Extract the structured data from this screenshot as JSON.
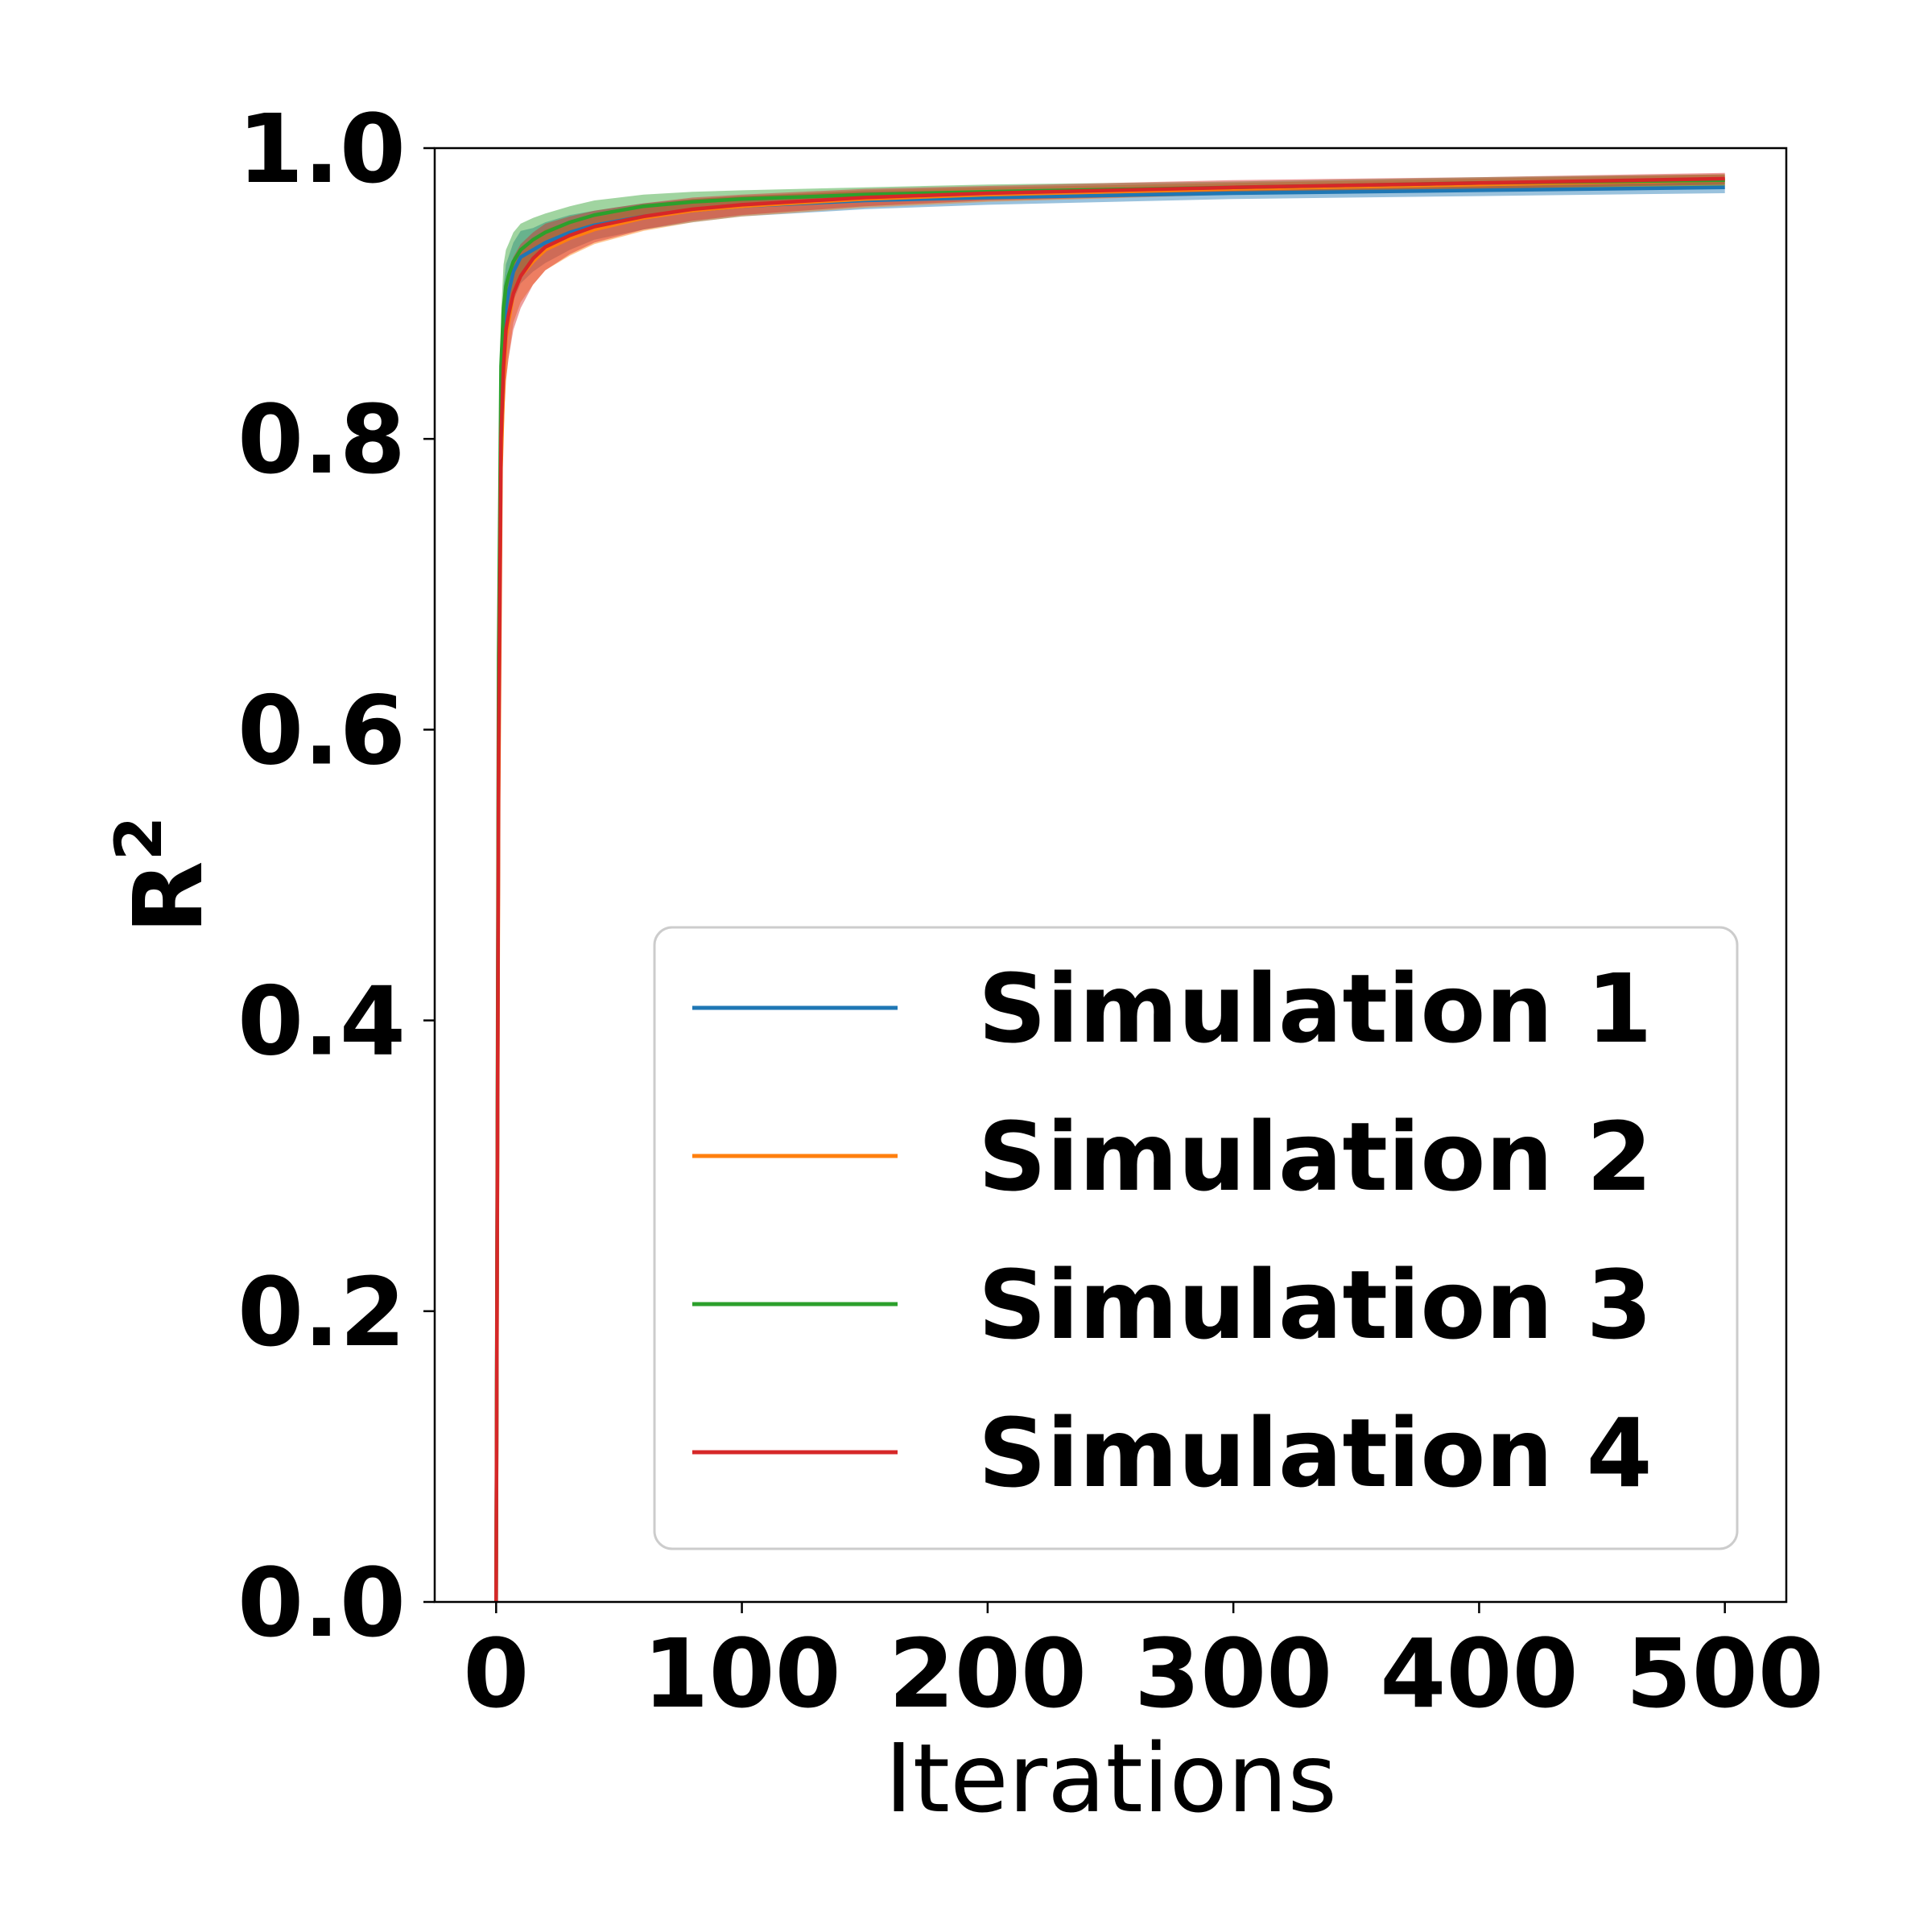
{
  "chart_data": {
    "type": "line",
    "xlabel": "Iterations",
    "ylabel": "R",
    "ylabel_superscript": "2",
    "xlim": [
      -25,
      525
    ],
    "ylim": [
      0,
      1.0
    ],
    "xticks": [
      0,
      100,
      200,
      300,
      400,
      500
    ],
    "xtick_labels": [
      "0",
      "100",
      "200",
      "300",
      "400",
      "500"
    ],
    "yticks": [
      0.0,
      0.2,
      0.4,
      0.6,
      0.8,
      1.0
    ],
    "ytick_labels": [
      "0.0",
      "0.2",
      "0.4",
      "0.6",
      "0.8",
      "1.0"
    ],
    "grid": false,
    "legend_position": "lower-right",
    "shaded_bands": true,
    "series": [
      {
        "name": "Simulation 1",
        "color": "#1f77b4",
        "x": [
          0,
          1,
          2,
          3,
          4,
          5,
          7,
          10,
          15,
          20,
          30,
          40,
          60,
          80,
          100,
          150,
          200,
          300,
          400,
          500
        ],
        "y": [
          0.0,
          0.6,
          0.82,
          0.87,
          0.89,
          0.9,
          0.915,
          0.925,
          0.93,
          0.935,
          0.942,
          0.947,
          0.953,
          0.957,
          0.96,
          0.964,
          0.966,
          0.969,
          0.971,
          0.973
        ],
        "band": [
          0.03,
          0.04,
          0.04,
          0.035,
          0.03,
          0.025,
          0.02,
          0.018,
          0.015,
          0.014,
          0.012,
          0.01,
          0.009,
          0.008,
          0.007,
          0.006,
          0.005,
          0.004,
          0.004,
          0.004
        ]
      },
      {
        "name": "Simulation 2",
        "color": "#ff7f0e",
        "x": [
          0,
          1,
          2,
          3,
          4,
          5,
          7,
          10,
          15,
          20,
          30,
          40,
          60,
          80,
          100,
          150,
          200,
          300,
          400,
          500
        ],
        "y": [
          0.0,
          0.55,
          0.78,
          0.84,
          0.87,
          0.88,
          0.9,
          0.912,
          0.922,
          0.93,
          0.938,
          0.944,
          0.952,
          0.957,
          0.96,
          0.965,
          0.968,
          0.972,
          0.975,
          0.978
        ],
        "band": [
          0.03,
          0.04,
          0.04,
          0.035,
          0.03,
          0.025,
          0.02,
          0.018,
          0.016,
          0.014,
          0.012,
          0.01,
          0.009,
          0.008,
          0.007,
          0.006,
          0.005,
          0.004,
          0.004,
          0.004
        ]
      },
      {
        "name": "Simulation 3",
        "color": "#2ca02c",
        "x": [
          0,
          1,
          2,
          3,
          4,
          5,
          7,
          10,
          15,
          20,
          30,
          40,
          60,
          80,
          100,
          150,
          200,
          300,
          400,
          500
        ],
        "y": [
          0.0,
          0.65,
          0.85,
          0.89,
          0.905,
          0.912,
          0.922,
          0.93,
          0.937,
          0.942,
          0.949,
          0.954,
          0.96,
          0.963,
          0.965,
          0.968,
          0.97,
          0.973,
          0.976,
          0.978
        ],
        "band": [
          0.03,
          0.04,
          0.035,
          0.03,
          0.025,
          0.022,
          0.02,
          0.018,
          0.015,
          0.013,
          0.011,
          0.01,
          0.008,
          0.007,
          0.006,
          0.005,
          0.005,
          0.004,
          0.004,
          0.004
        ]
      },
      {
        "name": "Simulation 4",
        "color": "#d62728",
        "x": [
          0,
          1,
          2,
          3,
          4,
          5,
          7,
          10,
          15,
          20,
          30,
          40,
          60,
          80,
          100,
          150,
          200,
          300,
          400,
          500
        ],
        "y": [
          0.0,
          0.58,
          0.8,
          0.85,
          0.875,
          0.885,
          0.9,
          0.912,
          0.924,
          0.932,
          0.94,
          0.946,
          0.953,
          0.958,
          0.961,
          0.966,
          0.969,
          0.973,
          0.976,
          0.979
        ],
        "band": [
          0.03,
          0.045,
          0.045,
          0.04,
          0.035,
          0.03,
          0.025,
          0.022,
          0.018,
          0.016,
          0.013,
          0.011,
          0.009,
          0.008,
          0.007,
          0.006,
          0.005,
          0.005,
          0.004,
          0.004
        ]
      }
    ]
  }
}
